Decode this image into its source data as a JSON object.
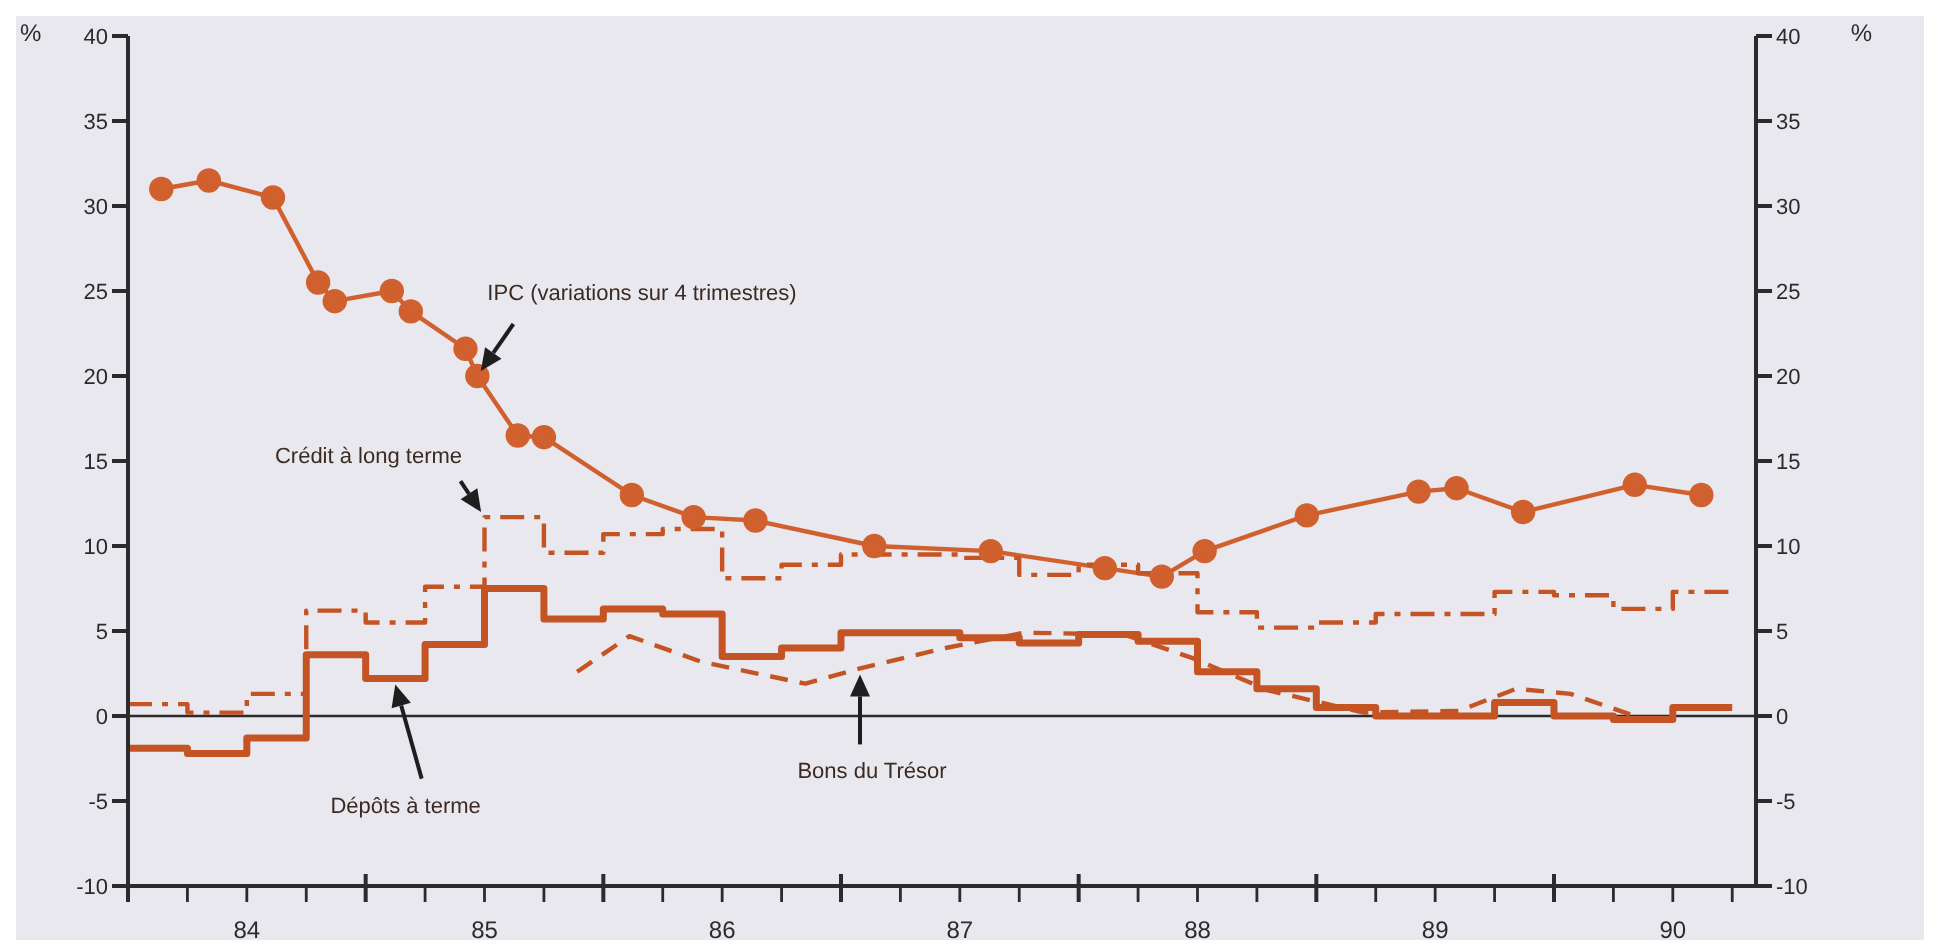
{
  "chart_data": {
    "type": "line",
    "ylabel": "%",
    "y2label": "%",
    "xlim": [
      84,
      90.85
    ],
    "xticks": [
      {
        "value": 84,
        "label": null
      },
      {
        "value": 84.25,
        "label": null
      },
      {
        "value": 84.5,
        "label": "84"
      },
      {
        "value": 84.75,
        "label": null
      },
      {
        "value": 85,
        "label": null
      },
      {
        "value": 85.25,
        "label": null
      },
      {
        "value": 85.5,
        "label": "85"
      },
      {
        "value": 85.75,
        "label": null
      },
      {
        "value": 86,
        "label": null
      },
      {
        "value": 86.25,
        "label": null
      },
      {
        "value": 86.5,
        "label": "86"
      },
      {
        "value": 86.75,
        "label": null
      },
      {
        "value": 87,
        "label": null
      },
      {
        "value": 87.25,
        "label": null
      },
      {
        "value": 87.5,
        "label": "87"
      },
      {
        "value": 87.75,
        "label": null
      },
      {
        "value": 88,
        "label": null
      },
      {
        "value": 88.25,
        "label": null
      },
      {
        "value": 88.5,
        "label": "88"
      },
      {
        "value": 88.75,
        "label": null
      },
      {
        "value": 89,
        "label": null
      },
      {
        "value": 89.25,
        "label": null
      },
      {
        "value": 89.5,
        "label": "89"
      },
      {
        "value": 89.75,
        "label": null
      },
      {
        "value": 90,
        "label": null
      },
      {
        "value": 90.25,
        "label": null
      },
      {
        "value": 90.5,
        "label": "90"
      },
      {
        "value": 90.75,
        "label": null
      }
    ],
    "ylim": [
      -10,
      40
    ],
    "yticks": [
      -10,
      -5,
      0,
      5,
      10,
      15,
      20,
      25,
      30,
      35,
      40
    ],
    "y2lim": [
      -10,
      40
    ],
    "y2ticks": [
      -10,
      -5,
      0,
      5,
      10,
      15,
      20,
      25,
      30,
      35,
      40
    ],
    "legend": false,
    "ref_lines": [
      {
        "axis": "y",
        "value": 0,
        "color": "#2b2b2b"
      }
    ],
    "series": [
      {
        "name": "IPC (variations sur 4 trimestres)",
        "color": "#d0602e",
        "marker": "circle",
        "line_style": "solid",
        "x": [
          84.14,
          84.34,
          84.61,
          84.8,
          84.87,
          85.11,
          85.19,
          85.42,
          85.47,
          85.64,
          85.75,
          86.12,
          86.38,
          86.64,
          87.14,
          87.63,
          88.11,
          88.35,
          88.53,
          88.96,
          89.43,
          89.59,
          89.87,
          90.34,
          90.62
        ],
        "values": [
          31,
          31.5,
          30.5,
          25.5,
          24.4,
          25,
          23.8,
          21.6,
          20,
          16.5,
          16.4,
          13,
          11.7,
          11.5,
          10,
          9.7,
          8.7,
          8.2,
          9.7,
          11.8,
          13.2,
          13.4,
          12,
          13.6,
          13
        ]
      },
      {
        "name": "Crédit à long terme",
        "type": "step",
        "color": "#c45424",
        "marker": "none",
        "line_style": "dashdot",
        "x": [
          84,
          84.25,
          84.5,
          84.75,
          85,
          85.25,
          85.5,
          85.75,
          86,
          86.25,
          86.5,
          86.75,
          87,
          87.25,
          87.5,
          87.75,
          88,
          88.25,
          88.5,
          88.75,
          89,
          89.25,
          89.5,
          89.75,
          90,
          90.25,
          90.5,
          90.75
        ],
        "values": [
          0.7,
          0.2,
          1.3,
          6.2,
          5.5,
          7.6,
          11.7,
          9.6,
          10.7,
          11,
          8.1,
          8.9,
          9.5,
          9.5,
          9.3,
          8.3,
          8.9,
          8.4,
          6.1,
          5.2,
          5.5,
          6,
          6,
          7.3,
          7.1,
          6.3,
          7.3,
          7.3
        ]
      },
      {
        "name": "Dépôts à terme",
        "type": "step",
        "color": "#c45424",
        "marker": "none",
        "line_style": "solid",
        "x": [
          84,
          84.25,
          84.5,
          84.75,
          85,
          85.25,
          85.5,
          85.75,
          86,
          86.25,
          86.5,
          86.75,
          87,
          87.25,
          87.5,
          87.75,
          88,
          88.25,
          88.5,
          88.75,
          89,
          89.25,
          89.5,
          89.75,
          90,
          90.25,
          90.5,
          90.75
        ],
        "values": [
          -1.9,
          -2.2,
          -1.3,
          3.6,
          2.2,
          4.2,
          7.5,
          5.7,
          6.3,
          6,
          3.5,
          4,
          4.9,
          4.9,
          4.6,
          4.3,
          4.8,
          4.4,
          2.6,
          1.6,
          0.5,
          0,
          0,
          0.8,
          0,
          -0.2,
          0.5,
          0.5
        ]
      },
      {
        "name": "Bons du Trésor",
        "color": "#c45424",
        "marker": "none",
        "line_style": "dashed",
        "x": [
          85.89,
          86.11,
          86.41,
          86.85,
          87.08,
          87.44,
          87.77,
          88.19,
          88.48,
          88.8,
          89.2,
          89.6,
          89.84,
          90.07,
          90.32
        ],
        "values": [
          2.6,
          4.7,
          3.2,
          1.9,
          2.8,
          4,
          4.9,
          4.8,
          3.4,
          1.5,
          0.2,
          0.3,
          1.6,
          1.3,
          0.1
        ]
      }
    ]
  }
}
